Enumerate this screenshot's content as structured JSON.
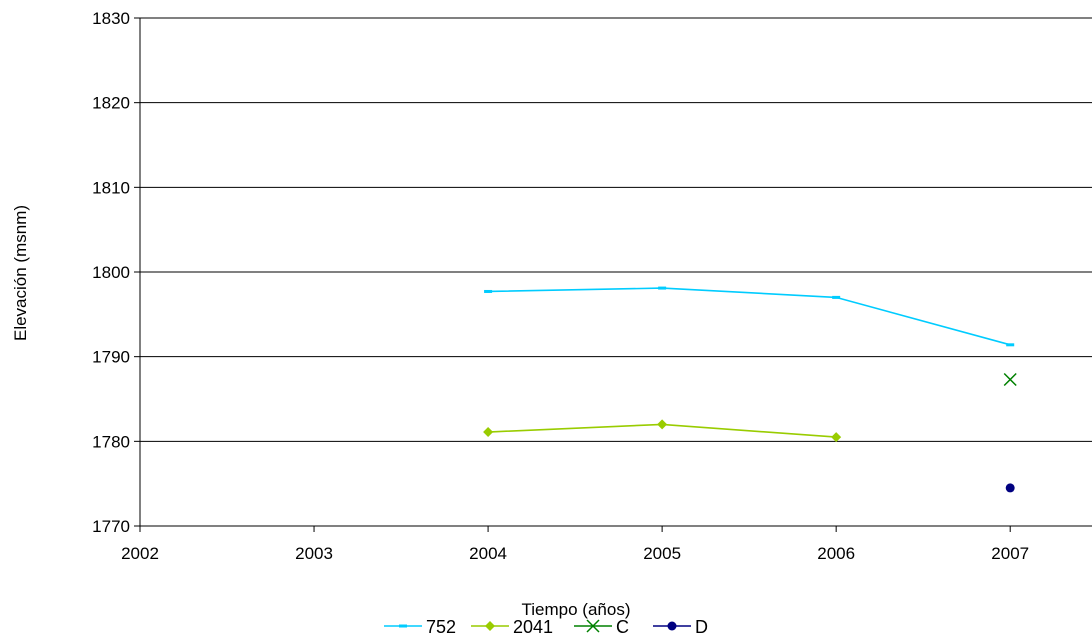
{
  "chart_data": {
    "type": "line",
    "title": "",
    "xlabel": "Tiempo (años)",
    "ylabel": "Elevación (msnm)",
    "xlim": [
      2002,
      2007.47
    ],
    "ylim": [
      1770,
      1830
    ],
    "xticks": [
      "2002",
      "2003",
      "2004",
      "2005",
      "2006",
      "2007"
    ],
    "yticks": [
      "1770",
      "1780",
      "1790",
      "1800",
      "1810",
      "1820",
      "1830"
    ],
    "grid": "horizontal",
    "legend_position": "bottom",
    "series": [
      {
        "name": "752",
        "color": "#00ccff",
        "marker": "dash",
        "points": [
          [
            2004,
            1797.7
          ],
          [
            2005,
            1798.1
          ],
          [
            2006,
            1797.0
          ],
          [
            2007,
            1791.4
          ]
        ]
      },
      {
        "name": "2041",
        "color": "#99cc00",
        "marker": "diamond",
        "points": [
          [
            2004,
            1781.1
          ],
          [
            2005,
            1782.0
          ],
          [
            2006,
            1780.5
          ]
        ]
      },
      {
        "name": "C",
        "color": "#008000",
        "marker": "x",
        "points": [
          [
            2007,
            1787.3
          ]
        ]
      },
      {
        "name": "D",
        "color": "#000080",
        "marker": "circle",
        "points": [
          [
            2007,
            1774.5
          ]
        ]
      }
    ]
  }
}
